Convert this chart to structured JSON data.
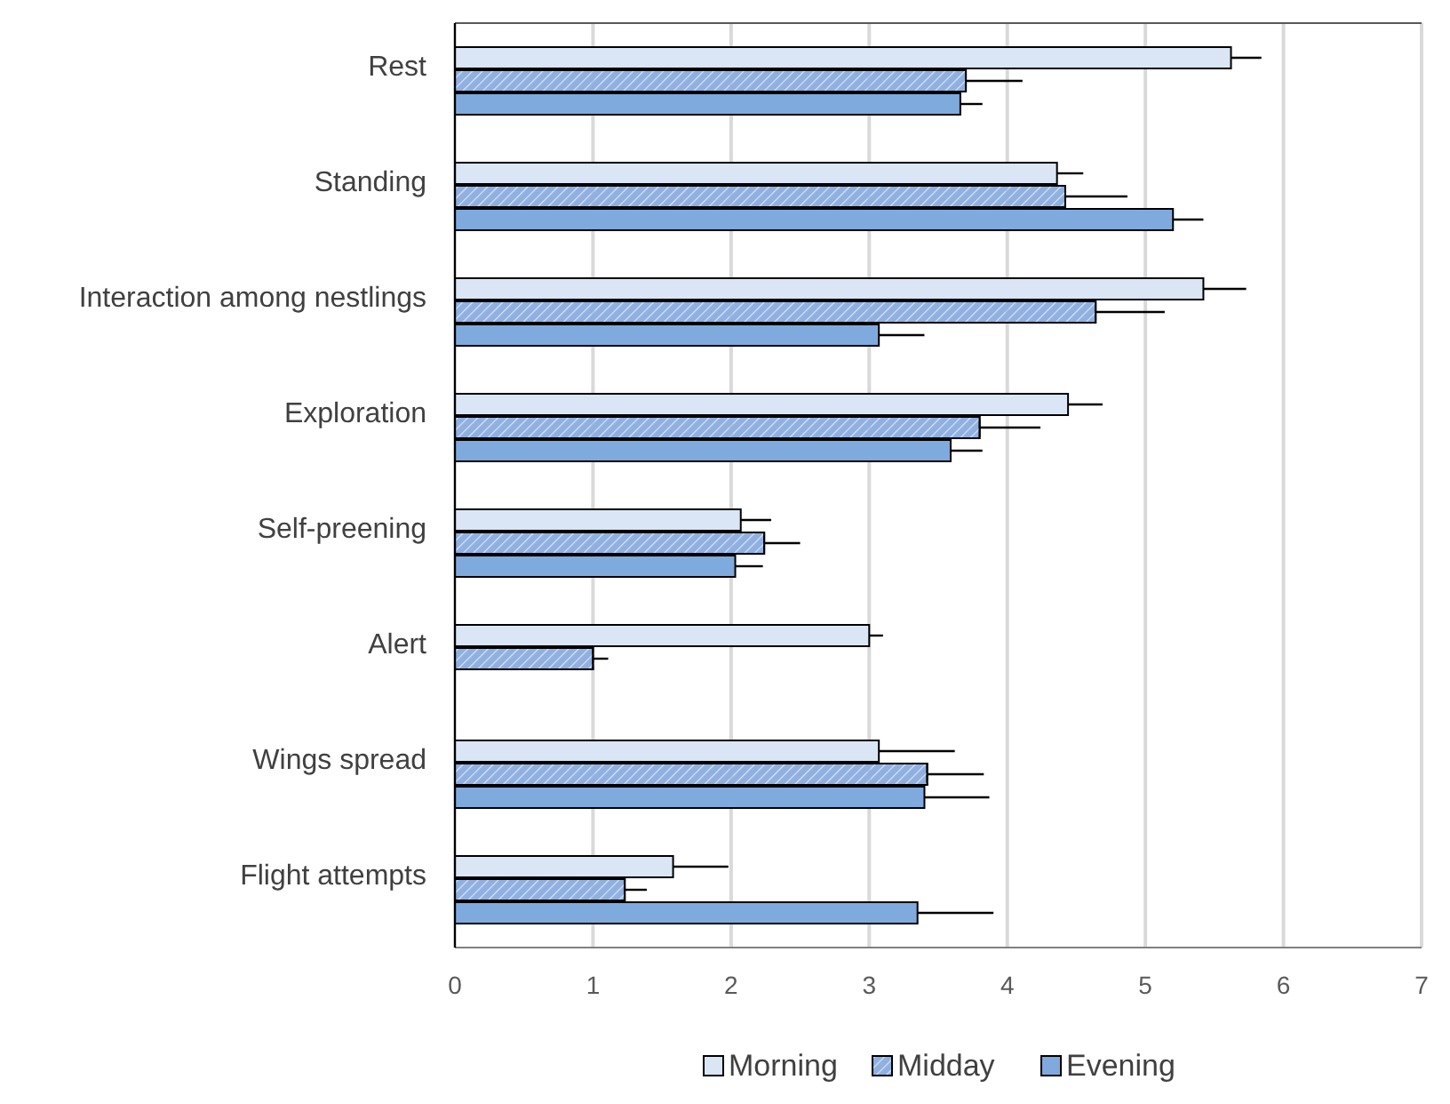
{
  "chart_data": {
    "type": "bar",
    "orientation": "horizontal",
    "categories": [
      "Rest",
      "Standing ",
      "Interaction among nestlings",
      "Exploration",
      "Self-preening",
      "Alert",
      "Wings spread",
      "Flight attempts"
    ],
    "series": [
      {
        "name": "Morning",
        "color": "#dae6f5",
        "values": [
          5.62,
          4.36,
          5.42,
          4.44,
          2.07,
          3.0,
          3.07,
          1.58
        ],
        "errors": [
          0.22,
          0.19,
          0.31,
          0.25,
          0.22,
          0.1,
          0.55,
          0.4
        ]
      },
      {
        "name": "Midday",
        "color": "#8fb0e0",
        "values": [
          3.7,
          4.42,
          4.64,
          3.8,
          2.24,
          1.0,
          3.42,
          1.23
        ],
        "errors": [
          0.41,
          0.45,
          0.5,
          0.44,
          0.26,
          0.11,
          0.41,
          0.16
        ]
      },
      {
        "name": "Evening",
        "color": "#7faadd",
        "values": [
          3.66,
          5.2,
          3.07,
          3.59,
          2.03,
          null,
          3.4,
          3.35
        ],
        "errors": [
          0.16,
          0.22,
          0.33,
          0.23,
          0.2,
          null,
          0.47,
          0.55
        ]
      }
    ],
    "xlim": [
      0,
      7
    ],
    "xticks": [
      0,
      1,
      2,
      3,
      4,
      5,
      6,
      7
    ],
    "grid": "x",
    "legend": "bottom"
  }
}
